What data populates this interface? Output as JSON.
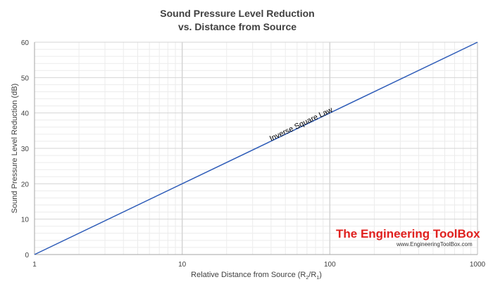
{
  "chart_data": {
    "type": "line",
    "title_line1": "Sound Pressure Level Reduction",
    "title_line2": "vs. Distance from Source",
    "xlabel": "Relative Distance from Source (R",
    "xlabel_sub1": "2",
    "xlabel_mid": "/R",
    "xlabel_sub2": "1",
    "xlabel_end": ")",
    "ylabel": "Sound Pressure Level Reduction (dB)",
    "x_scale": "log",
    "xlim": [
      1,
      1000
    ],
    "ylim": [
      0,
      60
    ],
    "x_ticks": [
      1,
      10,
      100,
      1000
    ],
    "x_tick_labels": [
      "1",
      "10",
      "100",
      "1000"
    ],
    "y_ticks": [
      0,
      10,
      20,
      30,
      40,
      50,
      60
    ],
    "y_tick_labels": [
      "0",
      "10",
      "20",
      "30",
      "40",
      "50",
      "60"
    ],
    "grid": "on",
    "series": [
      {
        "x": [
          1,
          10,
          100,
          1000
        ],
        "y": [
          0,
          20,
          40,
          60
        ],
        "color": "#2e5cb8"
      }
    ],
    "annotation": {
      "text": "Inverse Square Law",
      "x": 40,
      "y": 32
    }
  },
  "watermark": {
    "brand": "The Engineering ToolBox",
    "url": "www.EngineeringToolBox.com",
    "brand_color": "#e0201e"
  }
}
